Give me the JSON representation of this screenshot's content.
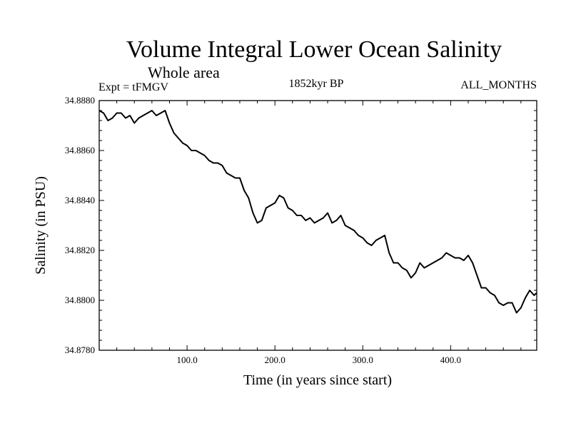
{
  "chart_data": {
    "type": "line",
    "title": "Volume Integral Lower Ocean Salinity",
    "subtitle": "Whole area",
    "info_left": "Expt = tFMGV",
    "info_center": "1852kyr BP",
    "info_right": "ALL_MONTHS",
    "xlabel": "Time (in years since start)",
    "ylabel": "Salinity (in PSU)",
    "xlim": [
      0,
      498
    ],
    "ylim": [
      34.878,
      34.888
    ],
    "xticks": [
      100,
      200,
      300,
      400
    ],
    "xtick_labels": [
      "100.0",
      "200.0",
      "300.0",
      "400.0"
    ],
    "yticks": [
      34.878,
      34.88,
      34.882,
      34.884,
      34.886,
      34.888
    ],
    "ytick_labels": [
      "34.8780",
      "34.8800",
      "34.8820",
      "34.8840",
      "34.8860",
      "34.8880"
    ],
    "series": [
      {
        "name": "salinity",
        "x": [
          0,
          5,
          10,
          15,
          20,
          25,
          30,
          35,
          40,
          45,
          50,
          55,
          60,
          65,
          70,
          75,
          80,
          85,
          90,
          95,
          100,
          105,
          110,
          115,
          120,
          125,
          130,
          135,
          140,
          145,
          150,
          155,
          160,
          165,
          170,
          175,
          180,
          185,
          190,
          195,
          200,
          205,
          210,
          215,
          220,
          225,
          230,
          235,
          240,
          245,
          250,
          255,
          260,
          265,
          270,
          275,
          280,
          285,
          290,
          295,
          300,
          305,
          310,
          315,
          320,
          325,
          330,
          335,
          340,
          345,
          350,
          355,
          360,
          365,
          370,
          375,
          380,
          385,
          390,
          395,
          400,
          405,
          410,
          415,
          420,
          425,
          430,
          435,
          440,
          445,
          450,
          455,
          460,
          465,
          470,
          475,
          480,
          485,
          490,
          495,
          498
        ],
        "values": [
          34.8876,
          34.8875,
          34.8872,
          34.8873,
          34.8875,
          34.8875,
          34.8873,
          34.8874,
          34.8871,
          34.8873,
          34.8874,
          34.8875,
          34.8876,
          34.8874,
          34.8875,
          34.8876,
          34.8871,
          34.8867,
          34.8865,
          34.8863,
          34.8862,
          34.886,
          34.886,
          34.8859,
          34.8858,
          34.8856,
          34.8855,
          34.8855,
          34.8854,
          34.8851,
          34.885,
          34.8849,
          34.8849,
          34.8844,
          34.8841,
          34.8835,
          34.8831,
          34.8832,
          34.8837,
          34.8838,
          34.8839,
          34.8842,
          34.8841,
          34.8837,
          34.8836,
          34.8834,
          34.8834,
          34.8832,
          34.8833,
          34.8831,
          34.8832,
          34.8833,
          34.8835,
          34.8831,
          34.8832,
          34.8834,
          34.883,
          34.8829,
          34.8828,
          34.8826,
          34.8825,
          34.8823,
          34.8822,
          34.8824,
          34.8825,
          34.8826,
          34.8819,
          34.8815,
          34.8815,
          34.8813,
          34.8812,
          34.8809,
          34.8811,
          34.8815,
          34.8813,
          34.8814,
          34.8815,
          34.8816,
          34.8817,
          34.8819,
          34.8818,
          34.8817,
          34.8817,
          34.8816,
          34.8818,
          34.8815,
          34.881,
          34.8805,
          34.8805,
          34.8803,
          34.8802,
          34.8799,
          34.8798,
          34.8799,
          34.8799,
          34.8795,
          34.8797,
          34.8801,
          34.8804,
          34.8802,
          34.8803
        ]
      }
    ],
    "grid": false
  }
}
